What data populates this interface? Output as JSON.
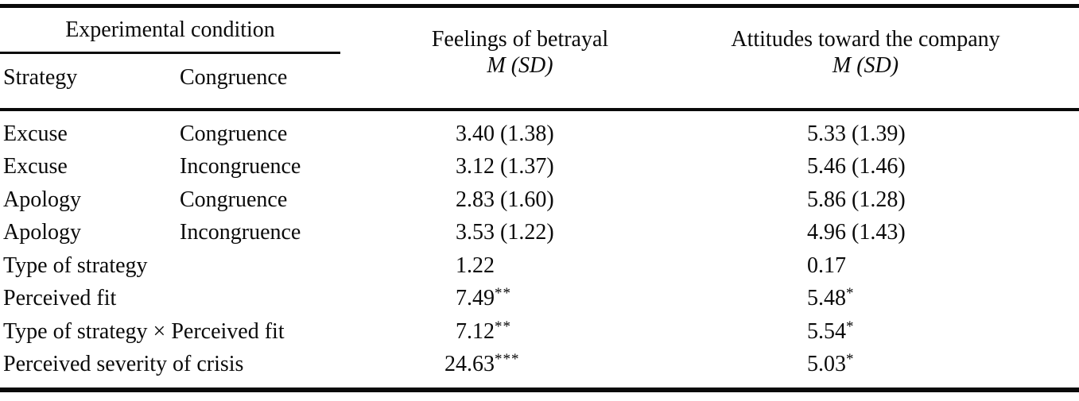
{
  "table": {
    "header": {
      "group": "Experimental condition",
      "col_strategy": "Strategy",
      "col_congruence": "Congruence",
      "col_betrayal_line1": "Feelings of betrayal",
      "col_betrayal_line2": "M (SD)",
      "col_attitudes_line1": "Attitudes toward the company",
      "col_attitudes_line2": "M (SD)"
    },
    "rows": [
      {
        "strategy": "Excuse",
        "congruence": "Congruence",
        "b_pre": "3",
        "b_post": ".40 (1.38)",
        "b_sup": "",
        "a_pre": "5",
        "a_post": ".33 (1.39)",
        "a_sup": ""
      },
      {
        "strategy": "Excuse",
        "congruence": "Incongruence",
        "b_pre": "3",
        "b_post": ".12 (1.37)",
        "b_sup": "",
        "a_pre": "5",
        "a_post": ".46 (1.46)",
        "a_sup": ""
      },
      {
        "strategy": "Apology",
        "congruence": "Congruence",
        "b_pre": "2",
        "b_post": ".83 (1.60)",
        "b_sup": "",
        "a_pre": "5",
        "a_post": ".86 (1.28)",
        "a_sup": ""
      },
      {
        "strategy": "Apology",
        "congruence": "Incongruence",
        "b_pre": "3",
        "b_post": ".53 (1.22)",
        "b_sup": "",
        "a_pre": "4",
        "a_post": ".96 (1.43)",
        "a_sup": ""
      },
      {
        "strategy": "Type of strategy",
        "congruence": "",
        "b_pre": "1",
        "b_post": ".22",
        "b_sup": "",
        "a_pre": "0",
        "a_post": ".17",
        "a_sup": ""
      },
      {
        "strategy": "Perceived fit",
        "congruence": "",
        "b_pre": "7",
        "b_post": ".49",
        "b_sup": "**",
        "a_pre": "5",
        "a_post": ".48",
        "a_sup": "*"
      },
      {
        "strategy": "Type of strategy × Perceived fit",
        "congruence": "",
        "b_pre": "7",
        "b_post": ".12",
        "b_sup": "**",
        "a_pre": "5",
        "a_post": ".54",
        "a_sup": "*"
      },
      {
        "strategy": "Perceived severity of crisis",
        "congruence": "",
        "b_pre": "24",
        "b_post": ".63",
        "b_sup": "***",
        "a_pre": "5",
        "a_post": ".03",
        "a_sup": "*"
      }
    ]
  }
}
